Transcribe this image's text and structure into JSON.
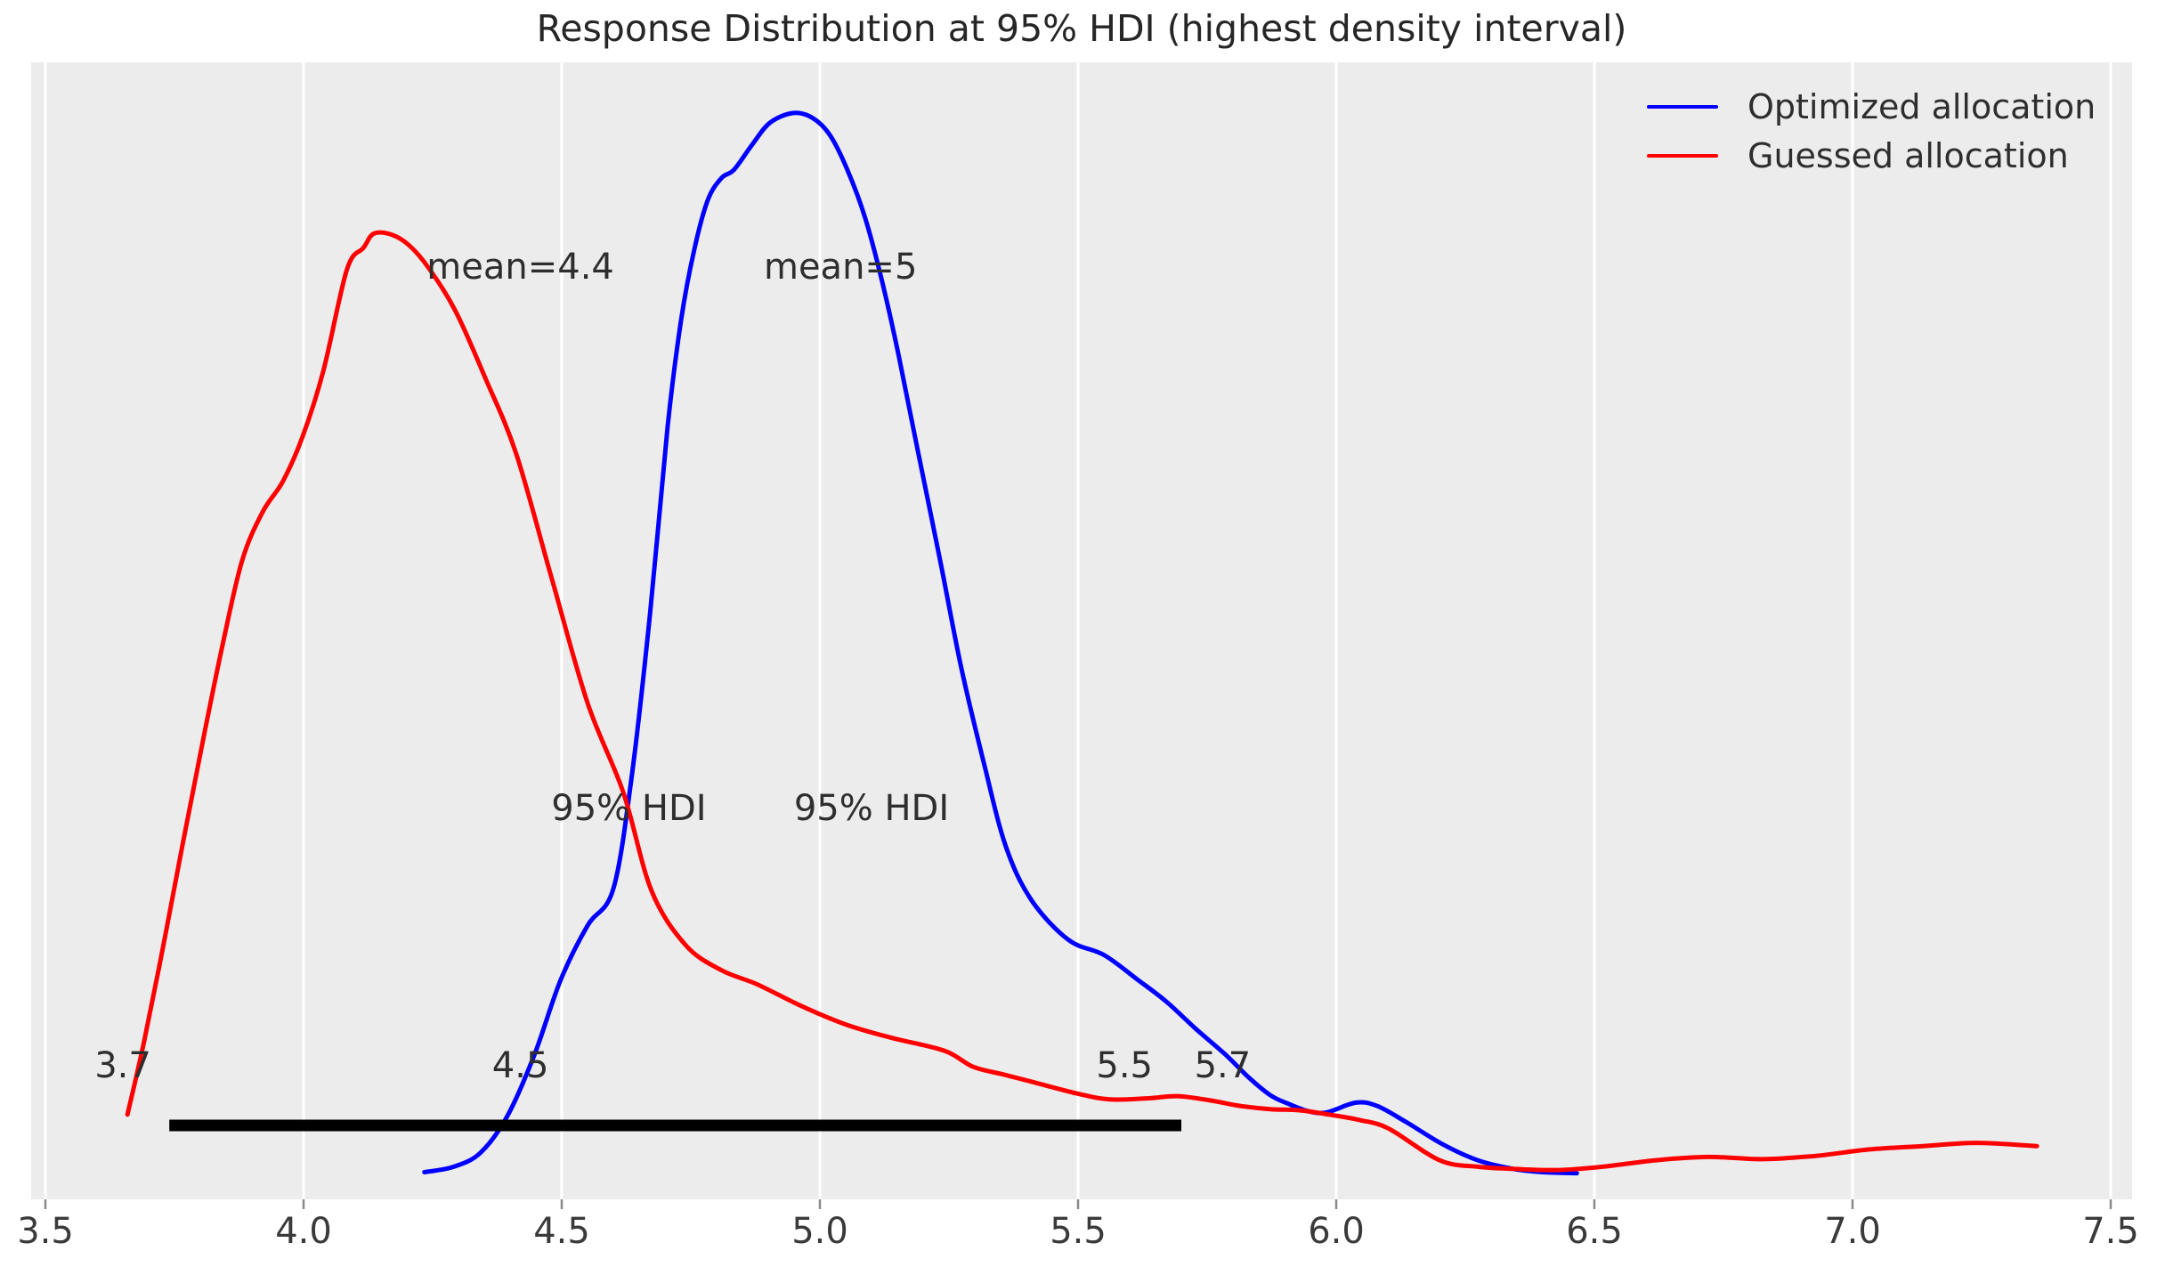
{
  "title": "Response Distribution at 95% HDI (highest density interval)",
  "colors": {
    "figure_bg": "#ffffff",
    "axes_bg": "#ececec",
    "grid": "#ffffff",
    "tick": "#8a8a8a",
    "text": "#2e2e2e",
    "optimized": "#0000ff",
    "guessed": "#ff0000",
    "hdi_bar": "#000000"
  },
  "legend": {
    "position": "upper right",
    "items": [
      {
        "label": "Optimized allocation",
        "color_key": "optimized"
      },
      {
        "label": "Guessed allocation",
        "color_key": "guessed"
      }
    ]
  },
  "chart_data": {
    "type": "line",
    "title": "Response Distribution at 95% HDI (highest density interval)",
    "xlabel": "",
    "ylabel": "",
    "x_axis": {
      "min": 3.5,
      "max": 7.5,
      "tick_step": 0.5,
      "tick_values": [
        3.5,
        4.0,
        4.5,
        5.0,
        5.5,
        6.0,
        6.5,
        7.0,
        7.5
      ],
      "tick_labels": [
        "3.5",
        "4.0",
        "4.5",
        "5.0",
        "5.5",
        "6.0",
        "6.5",
        "7.0",
        "7.5"
      ]
    },
    "y_axis": {
      "visible": false,
      "units": "relative density (0-1 of max)"
    },
    "grid": {
      "vertical": true,
      "horizontal": false
    },
    "legend_position": "upper right",
    "series": [
      {
        "name": "Optimized allocation",
        "color": "#0000ff",
        "mean": 5.0,
        "hdi_95": [
          4.5,
          5.7
        ],
        "points": [
          [
            4.234,
            0.025
          ],
          [
            4.291,
            0.03
          ],
          [
            4.343,
            0.043
          ],
          [
            4.395,
            0.077
          ],
          [
            4.447,
            0.133
          ],
          [
            4.498,
            0.202
          ],
          [
            4.55,
            0.252
          ],
          [
            4.6,
            0.286
          ],
          [
            4.636,
            0.391
          ],
          [
            4.671,
            0.539
          ],
          [
            4.705,
            0.711
          ],
          [
            4.731,
            0.809
          ],
          [
            4.757,
            0.875
          ],
          [
            4.783,
            0.92
          ],
          [
            4.809,
            0.94
          ],
          [
            4.834,
            0.948
          ],
          [
            4.869,
            0.971
          ],
          [
            4.903,
            0.991
          ],
          [
            4.947,
            1.0
          ],
          [
            4.984,
            0.996
          ],
          [
            5.019,
            0.98
          ],
          [
            5.053,
            0.948
          ],
          [
            5.088,
            0.903
          ],
          [
            5.122,
            0.842
          ],
          [
            5.153,
            0.776
          ],
          [
            5.191,
            0.686
          ],
          [
            5.233,
            0.588
          ],
          [
            5.274,
            0.489
          ],
          [
            5.319,
            0.399
          ],
          [
            5.36,
            0.325
          ],
          [
            5.409,
            0.276
          ],
          [
            5.481,
            0.239
          ],
          [
            5.55,
            0.225
          ],
          [
            5.616,
            0.202
          ],
          [
            5.671,
            0.182
          ],
          [
            5.728,
            0.157
          ],
          [
            5.786,
            0.133
          ],
          [
            5.831,
            0.112
          ],
          [
            5.872,
            0.096
          ],
          [
            5.907,
            0.088
          ],
          [
            5.947,
            0.081
          ],
          [
            5.981,
            0.08
          ],
          [
            6.038,
            0.089
          ],
          [
            6.079,
            0.086
          ],
          [
            6.136,
            0.071
          ],
          [
            6.205,
            0.051
          ],
          [
            6.274,
            0.036
          ],
          [
            6.343,
            0.028
          ],
          [
            6.4,
            0.025
          ],
          [
            6.466,
            0.024
          ]
        ]
      },
      {
        "name": "Guessed allocation",
        "color": "#ff0000",
        "mean": 4.4,
        "hdi_95": [
          3.7,
          5.5
        ],
        "points": [
          [
            3.659,
            0.078
          ],
          [
            3.691,
            0.145
          ],
          [
            3.729,
            0.235
          ],
          [
            3.767,
            0.33
          ],
          [
            3.805,
            0.422
          ],
          [
            3.843,
            0.51
          ],
          [
            3.881,
            0.588
          ],
          [
            3.921,
            0.633
          ],
          [
            3.96,
            0.661
          ],
          [
            3.998,
            0.702
          ],
          [
            4.038,
            0.762
          ],
          [
            4.084,
            0.856
          ],
          [
            4.116,
            0.876
          ],
          [
            4.136,
            0.889
          ],
          [
            4.171,
            0.888
          ],
          [
            4.205,
            0.878
          ],
          [
            4.243,
            0.857
          ],
          [
            4.295,
            0.817
          ],
          [
            4.352,
            0.756
          ],
          [
            4.412,
            0.686
          ],
          [
            4.481,
            0.571
          ],
          [
            4.55,
            0.457
          ],
          [
            4.619,
            0.375
          ],
          [
            4.674,
            0.284
          ],
          [
            4.74,
            0.234
          ],
          [
            4.809,
            0.211
          ],
          [
            4.878,
            0.198
          ],
          [
            4.964,
            0.178
          ],
          [
            5.05,
            0.161
          ],
          [
            5.136,
            0.149
          ],
          [
            5.24,
            0.137
          ],
          [
            5.297,
            0.122
          ],
          [
            5.355,
            0.115
          ],
          [
            5.412,
            0.108
          ],
          [
            5.502,
            0.097
          ],
          [
            5.562,
            0.092
          ],
          [
            5.636,
            0.093
          ],
          [
            5.693,
            0.095
          ],
          [
            5.757,
            0.091
          ],
          [
            5.814,
            0.086
          ],
          [
            5.872,
            0.083
          ],
          [
            5.929,
            0.082
          ],
          [
            5.986,
            0.078
          ],
          [
            6.045,
            0.073
          ],
          [
            6.102,
            0.065
          ],
          [
            6.2,
            0.036
          ],
          [
            6.274,
            0.03
          ],
          [
            6.343,
            0.028
          ],
          [
            6.429,
            0.027
          ],
          [
            6.516,
            0.03
          ],
          [
            6.619,
            0.036
          ],
          [
            6.722,
            0.039
          ],
          [
            6.826,
            0.037
          ],
          [
            6.929,
            0.04
          ],
          [
            7.033,
            0.046
          ],
          [
            7.136,
            0.049
          ],
          [
            7.24,
            0.052
          ],
          [
            7.357,
            0.049
          ]
        ]
      }
    ],
    "hdi_bars": [
      {
        "series": "Guessed allocation",
        "from": 3.74,
        "to": 5.52,
        "labels": [
          "3.7",
          "5.5"
        ]
      },
      {
        "series": "Optimized allocation",
        "from": 4.52,
        "to": 5.7,
        "labels": [
          "4.5",
          "5.7"
        ]
      }
    ],
    "annotations": [
      {
        "id": "mean-guessed",
        "text": "mean=4.4",
        "x": 4.42,
        "h": 0.858
      },
      {
        "id": "mean-optimized",
        "text": "mean=5",
        "x": 5.04,
        "h": 0.858
      },
      {
        "id": "hdi-title-guessed",
        "text": "95% HDI",
        "x": 4.63,
        "h": 0.36
      },
      {
        "id": "hdi-title-optimized",
        "text": "95% HDI",
        "x": 5.1,
        "h": 0.36
      },
      {
        "id": "hdi-low-guessed",
        "text": "3.7",
        "x": 3.65,
        "h": 0.123
      },
      {
        "id": "hdi-low-optimized",
        "text": "4.5",
        "x": 4.42,
        "h": 0.123
      },
      {
        "id": "hdi-high-guessed",
        "text": "5.5",
        "x": 5.59,
        "h": 0.123
      },
      {
        "id": "hdi-high-optimized",
        "text": "5.7",
        "x": 5.78,
        "h": 0.123
      }
    ]
  }
}
